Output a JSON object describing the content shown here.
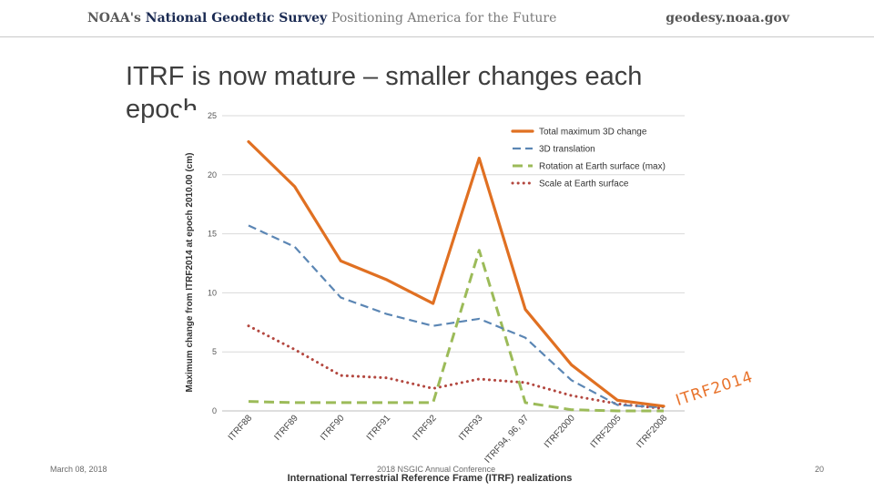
{
  "header": {
    "brand_part1": "NOAA's",
    "brand_part2": "National Geodetic Survey",
    "brand_part3": "Positioning America for the Future",
    "site": "geodesy.noaa.gov"
  },
  "slide": {
    "title": "ITRF is now mature – smaller changes each epoch",
    "overlay_text": "ITRF2014"
  },
  "footer": {
    "date": "March 08, 2018",
    "conference": "2018 NSGIC Annual Conference",
    "page": "20"
  },
  "colors": {
    "total": "#e07022",
    "translation": "#5b86b4",
    "rotation": "#9cbb59",
    "scale": "#b3473f",
    "grid": "#d9d9d9"
  },
  "chart_data": {
    "type": "line",
    "title": "",
    "xlabel": "International Terrestrial Reference Frame (ITRF) realizations",
    "ylabel": "Maximum change from ITRF2014 at epoch 2010.00 (cm)",
    "ylim": [
      0,
      25
    ],
    "yticks": [
      0,
      5,
      10,
      15,
      20,
      25
    ],
    "grid": true,
    "legend_position": "top-right",
    "categories": [
      "ITRF88",
      "ITRF89",
      "ITRF90",
      "ITRF91",
      "ITRF92",
      "ITRF93",
      "ITRF94, 96, 97",
      "ITRF2000",
      "ITRF2005",
      "ITRF2008"
    ],
    "series": [
      {
        "name": "Total maximum 3D change",
        "style": "solid",
        "values": [
          22.8,
          19.0,
          12.7,
          11.1,
          9.1,
          21.4,
          8.6,
          3.9,
          0.9,
          0.4
        ]
      },
      {
        "name": "3D translation",
        "style": "dashed",
        "values": [
          15.7,
          13.9,
          9.6,
          8.2,
          7.2,
          7.8,
          6.2,
          2.6,
          0.5,
          0.3
        ]
      },
      {
        "name": "Rotation at Earth surface (max)",
        "style": "longdash",
        "values": [
          0.8,
          0.7,
          0.7,
          0.7,
          0.7,
          13.6,
          0.7,
          0.1,
          0.0,
          0.0
        ]
      },
      {
        "name": "Scale at Earth surface",
        "style": "dotted",
        "values": [
          7.2,
          5.2,
          3.0,
          2.8,
          1.9,
          2.7,
          2.4,
          1.3,
          0.6,
          0.2
        ]
      }
    ]
  }
}
